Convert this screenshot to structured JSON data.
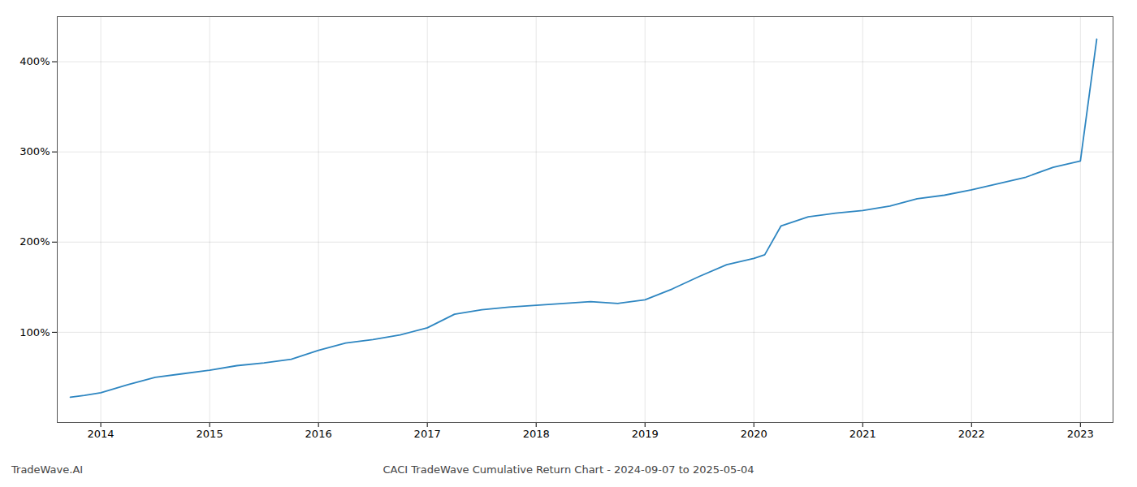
{
  "chart_data": {
    "type": "line",
    "title": "CACI TradeWave Cumulative Return Chart - 2024-09-07 to 2025-05-04",
    "annotations": [
      "TradeWave.AI"
    ],
    "x": [
      2013.72,
      2013.85,
      2014.0,
      2014.25,
      2014.5,
      2014.75,
      2015.0,
      2015.25,
      2015.5,
      2015.75,
      2016.0,
      2016.25,
      2016.5,
      2016.75,
      2017.0,
      2017.25,
      2017.5,
      2017.75,
      2018.0,
      2018.25,
      2018.5,
      2018.75,
      2019.0,
      2019.25,
      2019.5,
      2019.75,
      2020.0,
      2020.1,
      2020.25,
      2020.5,
      2020.75,
      2021.0,
      2021.25,
      2021.5,
      2021.75,
      2022.0,
      2022.25,
      2022.5,
      2022.75,
      2023.0,
      2023.15
    ],
    "values": [
      28,
      30,
      33,
      42,
      50,
      54,
      58,
      63,
      66,
      70,
      80,
      88,
      92,
      97,
      105,
      120,
      125,
      128,
      130,
      132,
      134,
      132,
      136,
      148,
      162,
      175,
      182,
      186,
      218,
      228,
      232,
      235,
      240,
      248,
      252,
      258,
      265,
      272,
      283,
      290,
      425
    ],
    "color": "#2e86c1",
    "xlim": [
      2013.6,
      2023.3
    ],
    "ylim": [
      0,
      450
    ],
    "xticks": [
      2014,
      2015,
      2016,
      2017,
      2018,
      2019,
      2020,
      2021,
      2022,
      2023
    ],
    "yticks": [
      {
        "value": 100,
        "label": "100%"
      },
      {
        "value": 200,
        "label": "200%"
      },
      {
        "value": 300,
        "label": "300%"
      },
      {
        "value": 400,
        "label": "400%"
      }
    ],
    "grid": true
  }
}
